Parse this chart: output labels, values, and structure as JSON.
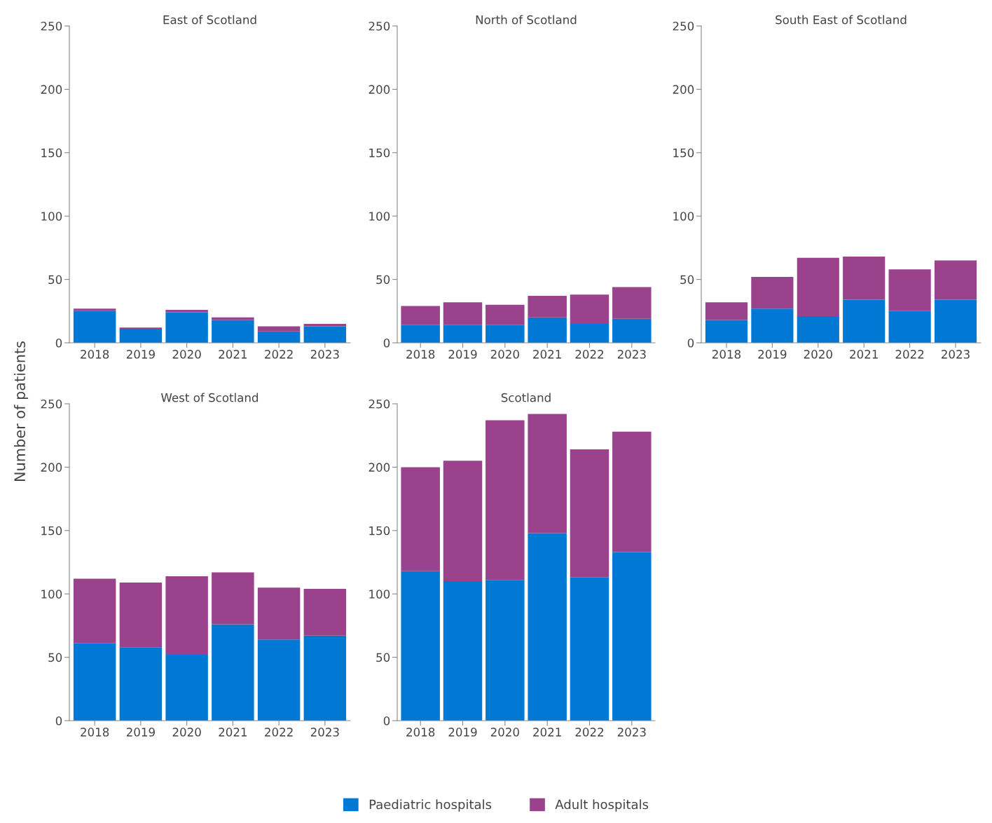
{
  "chart_data": [
    {
      "type": "bar",
      "title": "East of Scotland",
      "ylabel": "Number of patients",
      "stacked": true,
      "legend": "bottom",
      "categories": [
        "2018",
        "2019",
        "2020",
        "2021",
        "2022",
        "2023"
      ],
      "ylim": [
        0,
        250
      ],
      "yticks": [
        0,
        50,
        100,
        150,
        200,
        250
      ],
      "series": [
        {
          "name": "Paediatric hospitals",
          "color": "#0078d4",
          "values": [
            25,
            11,
            24,
            18,
            9,
            13
          ]
        },
        {
          "name": "Adult hospitals",
          "color": "#9a428c",
          "values": [
            2,
            1,
            2,
            2,
            4,
            2
          ]
        }
      ]
    },
    {
      "type": "bar",
      "title": "North of Scotland",
      "stacked": true,
      "categories": [
        "2018",
        "2019",
        "2020",
        "2021",
        "2022",
        "2023"
      ],
      "ylim": [
        0,
        250
      ],
      "yticks": [
        0,
        50,
        100,
        150,
        200,
        250
      ],
      "series": [
        {
          "color": "#0078d4",
          "values": [
            14,
            14,
            14,
            20,
            15,
            19
          ]
        },
        {
          "color": "#9a428c",
          "values": [
            15,
            18,
            16,
            17,
            23,
            25
          ]
        }
      ]
    },
    {
      "type": "bar",
      "title": "South East of Scotland",
      "stacked": true,
      "categories": [
        "2018",
        "2019",
        "2020",
        "2021",
        "2022",
        "2023"
      ],
      "ylim": [
        0,
        250
      ],
      "yticks": [
        0,
        50,
        100,
        150,
        200,
        250
      ],
      "series": [
        {
          "color": "#0078d4",
          "values": [
            18,
            27,
            21,
            34,
            25,
            34
          ]
        },
        {
          "color": "#9a428c",
          "values": [
            14,
            25,
            46,
            34,
            33,
            31
          ]
        }
      ]
    },
    {
      "type": "bar",
      "title": "West of Scotland",
      "stacked": true,
      "categories": [
        "2018",
        "2019",
        "2020",
        "2021",
        "2022",
        "2023"
      ],
      "ylim": [
        0,
        250
      ],
      "yticks": [
        0,
        50,
        100,
        150,
        200,
        250
      ],
      "series": [
        {
          "color": "#0078d4",
          "values": [
            61,
            58,
            52,
            76,
            64,
            67
          ]
        },
        {
          "color": "#9a428c",
          "values": [
            51,
            51,
            62,
            41,
            41,
            37
          ]
        }
      ]
    },
    {
      "type": "bar",
      "title": "Scotland",
      "stacked": true,
      "categories": [
        "2018",
        "2019",
        "2020",
        "2021",
        "2022",
        "2023"
      ],
      "ylim": [
        0,
        250
      ],
      "yticks": [
        0,
        50,
        100,
        150,
        200,
        250
      ],
      "series": [
        {
          "color": "#0078d4",
          "values": [
            118,
            110,
            111,
            148,
            113,
            133
          ]
        },
        {
          "color": "#9a428c",
          "values": [
            82,
            95,
            126,
            94,
            101,
            95
          ]
        }
      ]
    }
  ]
}
